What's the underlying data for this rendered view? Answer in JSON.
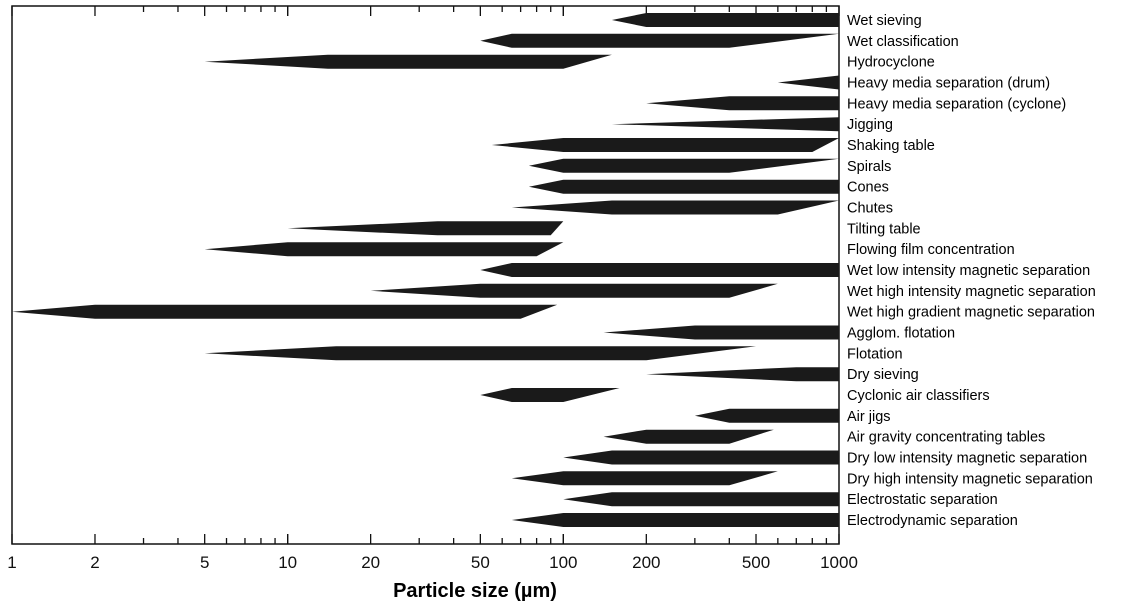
{
  "chart_data": {
    "type": "range-bar",
    "xlabel": "Particle size (µm)",
    "xscale": "log",
    "xlim": [
      1,
      1000
    ],
    "xticks": [
      1,
      2,
      5,
      10,
      20,
      50,
      100,
      200,
      500,
      1000
    ],
    "xtick_labels": [
      "1",
      "2",
      "5",
      "10",
      "20",
      "50",
      "100",
      "200",
      "500",
      "1000"
    ],
    "bar_color": "#1a1a1a",
    "processes": [
      {
        "name": "Wet sieving",
        "min": 150,
        "full_min": 200,
        "full_max": 1000,
        "max": 1000
      },
      {
        "name": "Wet classification",
        "min": 50,
        "full_min": 65,
        "full_max": 400,
        "max": 1000
      },
      {
        "name": "Hydrocyclone",
        "min": 5,
        "full_min": 14,
        "full_max": 100,
        "max": 150
      },
      {
        "name": "Heavy media separation (drum)",
        "min": 600,
        "full_min": 1000,
        "full_max": 1000,
        "max": 1000
      },
      {
        "name": "Heavy media separation (cyclone)",
        "min": 200,
        "full_min": 400,
        "full_max": 1000,
        "max": 1000
      },
      {
        "name": "Jigging",
        "min": 150,
        "full_min": 1000,
        "full_max": 1000,
        "max": 1000
      },
      {
        "name": "Shaking table",
        "min": 55,
        "full_min": 100,
        "full_max": 800,
        "max": 1000
      },
      {
        "name": "Spirals",
        "min": 75,
        "full_min": 100,
        "full_max": 400,
        "max": 1000
      },
      {
        "name": "Cones",
        "min": 75,
        "full_min": 100,
        "full_max": 1000,
        "max": 1000
      },
      {
        "name": "Chutes",
        "min": 65,
        "full_min": 150,
        "full_max": 600,
        "max": 1000
      },
      {
        "name": "Tilting table",
        "min": 10,
        "full_min": 35,
        "full_max": 90,
        "max": 100
      },
      {
        "name": "Flowing film concentration",
        "min": 5,
        "full_min": 10,
        "full_max": 80,
        "max": 100
      },
      {
        "name": "Wet low intensity magnetic separation",
        "min": 50,
        "full_min": 65,
        "full_max": 1000,
        "max": 1000
      },
      {
        "name": "Wet high intensity magnetic separation",
        "min": 20,
        "full_min": 50,
        "full_max": 400,
        "max": 600
      },
      {
        "name": "Wet high gradient magnetic separation",
        "min": 1,
        "full_min": 2,
        "full_max": 70,
        "max": 95
      },
      {
        "name": "Agglom. flotation",
        "min": 140,
        "full_min": 300,
        "full_max": 1000,
        "max": 1000
      },
      {
        "name": "Flotation",
        "min": 5,
        "full_min": 15,
        "full_max": 200,
        "max": 500
      },
      {
        "name": "Dry sieving",
        "min": 200,
        "full_min": 700,
        "full_max": 1000,
        "max": 1000
      },
      {
        "name": "Cyclonic air classifiers",
        "min": 50,
        "full_min": 65,
        "full_max": 100,
        "max": 160
      },
      {
        "name": "Air jigs",
        "min": 300,
        "full_min": 400,
        "full_max": 1000,
        "max": 1000
      },
      {
        "name": "Air gravity concentrating tables",
        "min": 140,
        "full_min": 200,
        "full_max": 400,
        "max": 580
      },
      {
        "name": "Dry low intensity magnetic separation",
        "min": 100,
        "full_min": 150,
        "full_max": 1000,
        "max": 1000
      },
      {
        "name": "Dry high intensity magnetic separation",
        "min": 65,
        "full_min": 100,
        "full_max": 400,
        "max": 600
      },
      {
        "name": "Electrostatic separation",
        "min": 100,
        "full_min": 150,
        "full_max": 1000,
        "max": 1000
      },
      {
        "name": "Electrodynamic separation",
        "min": 65,
        "full_min": 100,
        "full_max": 1000,
        "max": 1000
      }
    ]
  }
}
